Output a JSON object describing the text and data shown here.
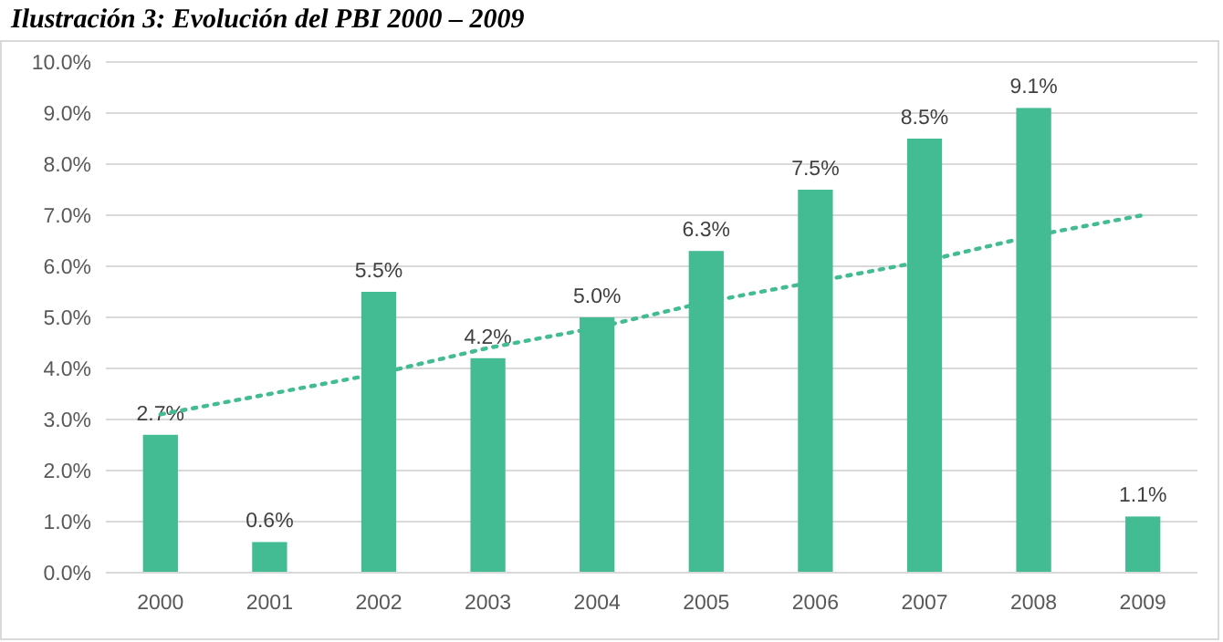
{
  "chart_data": {
    "type": "bar",
    "title": "Ilustración 3: Evolución del PBI 2000 – 2009",
    "categories": [
      "2000",
      "2001",
      "2002",
      "2003",
      "2004",
      "2005",
      "2006",
      "2007",
      "2008",
      "2009"
    ],
    "series": [
      {
        "color": "#43bb93",
        "values": [
          2.7,
          0.6,
          5.5,
          4.2,
          5.0,
          6.3,
          7.5,
          8.5,
          9.1,
          1.1
        ],
        "value_labels": [
          "2.7%",
          "0.6%",
          "5.5%",
          "4.2%",
          "5.0%",
          "6.3%",
          "7.5%",
          "8.5%",
          "9.1%",
          "1.1%"
        ]
      },
      {
        "type": "line",
        "color": "#43bb93",
        "line_style": "dotted",
        "marker": "none",
        "values": [
          3.1,
          3.5,
          3.9,
          4.4,
          4.8,
          5.3,
          5.7,
          6.1,
          6.6,
          7.0
        ]
      }
    ],
    "ylim": [
      0,
      10
    ],
    "yticks": [
      {
        "value": 0,
        "label": "0.0%"
      },
      {
        "value": 1,
        "label": "1.0%"
      },
      {
        "value": 2,
        "label": "2.0%"
      },
      {
        "value": 3,
        "label": "3.0%"
      },
      {
        "value": 4,
        "label": "4.0%"
      },
      {
        "value": 5,
        "label": "5.0%"
      },
      {
        "value": 6,
        "label": "6.0%"
      },
      {
        "value": 7,
        "label": "7.0%"
      },
      {
        "value": 8,
        "label": "8.0%"
      },
      {
        "value": 9,
        "label": "9.0%"
      },
      {
        "value": 10,
        "label": "10.0%"
      }
    ],
    "grid": "y"
  }
}
